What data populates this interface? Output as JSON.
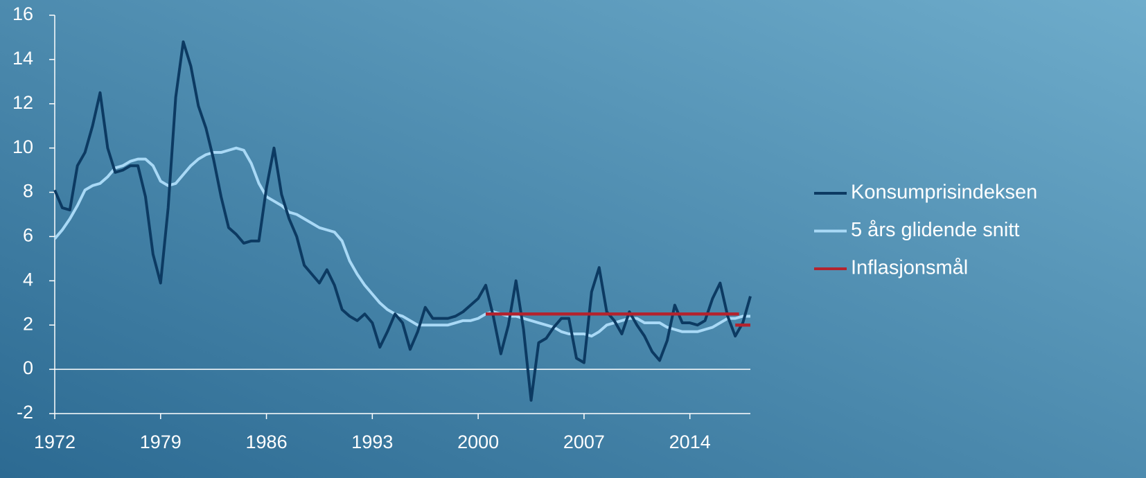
{
  "chart_data": {
    "type": "line",
    "x": [
      1972,
      1972.5,
      1973,
      1973.5,
      1974,
      1974.5,
      1975,
      1975.5,
      1976,
      1976.5,
      1977,
      1977.5,
      1978,
      1978.5,
      1979,
      1979.5,
      1980,
      1980.5,
      1981,
      1981.5,
      1982,
      1982.5,
      1983,
      1983.5,
      1984,
      1984.5,
      1985,
      1985.5,
      1986,
      1986.5,
      1987,
      1987.5,
      1988,
      1988.5,
      1989,
      1989.5,
      1990,
      1990.5,
      1991,
      1991.5,
      1992,
      1992.5,
      1993,
      1993.5,
      1994,
      1994.5,
      1995,
      1995.5,
      1996,
      1996.5,
      1997,
      1997.5,
      1998,
      1998.5,
      1999,
      1999.5,
      2000,
      2000.5,
      2001,
      2001.5,
      2002,
      2002.5,
      2003,
      2003.5,
      2004,
      2004.5,
      2005,
      2005.5,
      2006,
      2006.5,
      2007,
      2007.5,
      2008,
      2008.5,
      2009,
      2009.5,
      2010,
      2010.5,
      2011,
      2011.5,
      2012,
      2012.5,
      2013,
      2013.5,
      2014,
      2014.5,
      2015,
      2015.5,
      2016,
      2016.5,
      2017,
      2017.5,
      2018
    ],
    "series": [
      {
        "name": "Konsumprisindeksen",
        "color": "#0c3a62",
        "values": [
          8.1,
          7.3,
          7.2,
          9.2,
          9.8,
          11.0,
          12.5,
          10.0,
          8.9,
          9.0,
          9.2,
          9.2,
          7.8,
          5.2,
          3.9,
          7.3,
          12.3,
          14.8,
          13.7,
          11.9,
          10.9,
          9.5,
          7.8,
          6.4,
          6.1,
          5.7,
          5.8,
          5.8,
          8.2,
          10.0,
          7.9,
          6.8,
          6.0,
          4.7,
          4.3,
          3.9,
          4.5,
          3.8,
          2.7,
          2.4,
          2.2,
          2.5,
          2.1,
          1.0,
          1.7,
          2.5,
          2.1,
          0.9,
          1.7,
          2.8,
          2.3,
          2.3,
          2.3,
          2.4,
          2.6,
          2.9,
          3.2,
          3.8,
          2.4,
          0.7,
          2.0,
          4.0,
          1.8,
          -1.4,
          1.2,
          1.4,
          1.9,
          2.3,
          2.3,
          0.5,
          0.3,
          3.5,
          4.6,
          2.6,
          2.2,
          1.6,
          2.6,
          2.0,
          1.5,
          0.8,
          0.4,
          1.3,
          2.9,
          2.1,
          2.1,
          2.0,
          2.2,
          3.2,
          3.9,
          2.4,
          1.5,
          2.1,
          3.3
        ]
      },
      {
        "name": "5 års glidende snitt",
        "color": "#a9d9f6",
        "values": [
          5.9,
          6.3,
          6.8,
          7.4,
          8.1,
          8.3,
          8.4,
          8.7,
          9.1,
          9.2,
          9.4,
          9.5,
          9.5,
          9.2,
          8.5,
          8.3,
          8.4,
          8.8,
          9.2,
          9.5,
          9.7,
          9.8,
          9.8,
          9.9,
          10.0,
          9.9,
          9.3,
          8.4,
          7.8,
          7.6,
          7.4,
          7.1,
          7.0,
          6.8,
          6.6,
          6.4,
          6.3,
          6.2,
          5.8,
          4.9,
          4.3,
          3.8,
          3.4,
          3.0,
          2.7,
          2.5,
          2.4,
          2.2,
          2.0,
          2.0,
          2.0,
          2.0,
          2.0,
          2.1,
          2.2,
          2.2,
          2.3,
          2.5,
          2.6,
          2.5,
          2.4,
          2.4,
          2.3,
          2.2,
          2.1,
          2.0,
          1.9,
          1.7,
          1.6,
          1.6,
          1.6,
          1.5,
          1.7,
          2.0,
          2.1,
          2.2,
          2.3,
          2.3,
          2.1,
          2.1,
          2.1,
          1.9,
          1.8,
          1.7,
          1.7,
          1.7,
          1.8,
          1.9,
          2.1,
          2.3,
          2.3,
          2.4,
          2.4
        ]
      },
      {
        "name": "Inflasjonsmål",
        "color": "#b3232e",
        "x": [
          2000.5,
          2017.25,
          2017.25,
          2017.0,
          2018
        ],
        "values": [
          2.5,
          2.5,
          null,
          2.0,
          2.0
        ]
      }
    ],
    "xlim": [
      1972,
      2018
    ],
    "xticks": [
      1972,
      1979,
      1986,
      1993,
      2000,
      2007,
      2014
    ],
    "ylim": [
      -2,
      16
    ],
    "yticks": [
      -2,
      0,
      2,
      4,
      6,
      8,
      10,
      12,
      14,
      16
    ],
    "grid": false,
    "legend": "right"
  }
}
